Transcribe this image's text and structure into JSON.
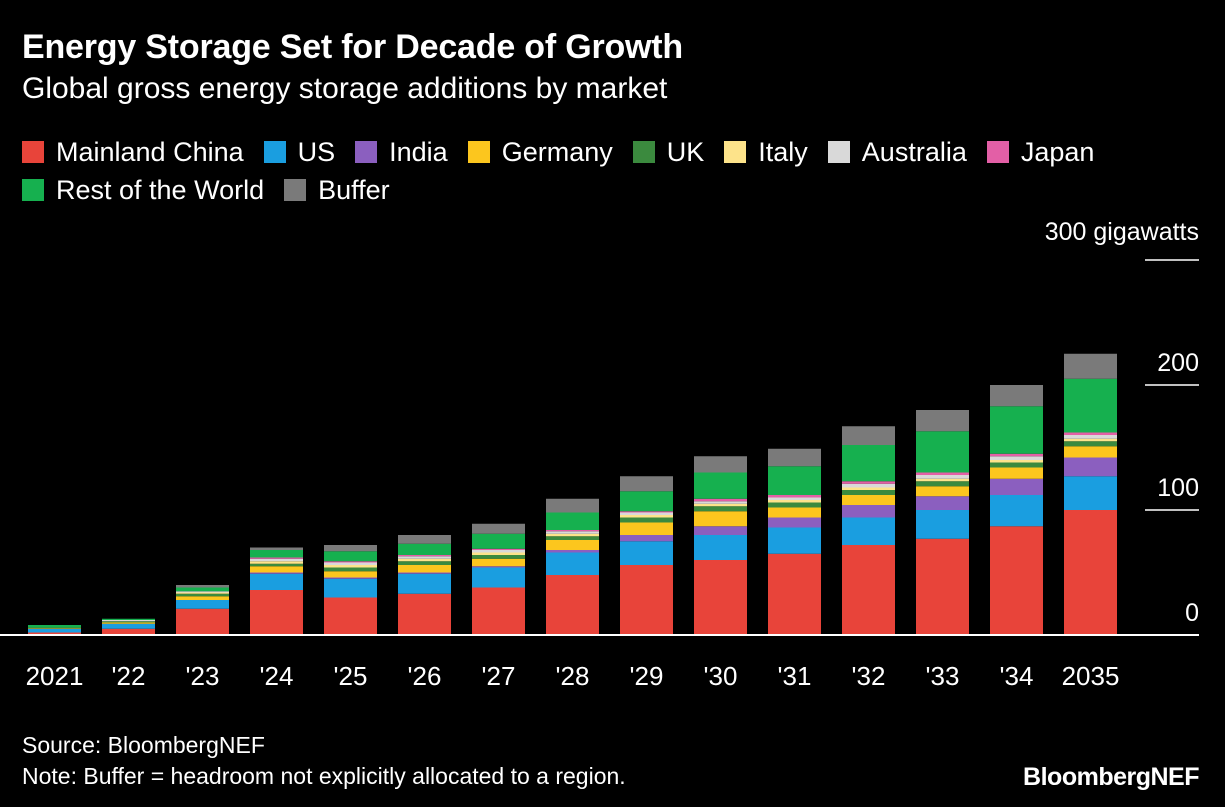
{
  "title": "Energy Storage Set for Decade of Growth",
  "subtitle": "Global gross energy storage additions by market",
  "source": "Source: BloombergNEF",
  "note": "Note: Buffer = headroom not explicitly allocated to a region.",
  "brand": "BloombergNEF",
  "unit_label": "300 gigawatts",
  "legend": [
    {
      "label": "Mainland China",
      "color": "#e8443a"
    },
    {
      "label": "US",
      "color": "#1a9ee0"
    },
    {
      "label": "India",
      "color": "#8b5fbf"
    },
    {
      "label": "Germany",
      "color": "#fcc61e"
    },
    {
      "label": "UK",
      "color": "#3b8a3e"
    },
    {
      "label": "Italy",
      "color": "#fde38a"
    },
    {
      "label": "Australia",
      "color": "#d9d9d9"
    },
    {
      "label": "Japan",
      "color": "#e35fa6"
    },
    {
      "label": "Rest of the World",
      "color": "#16b04f"
    },
    {
      "label": "Buffer",
      "color": "#7a7a7a"
    }
  ],
  "chart_data": {
    "type": "bar",
    "stacked": true,
    "title": "Energy Storage Set for Decade of Growth",
    "ylabel": "gigawatts",
    "ylim": [
      0,
      300
    ],
    "yticks": [
      0,
      100,
      200,
      300
    ],
    "ytick_labels": [
      "0",
      "100",
      "200",
      "300 gigawatts"
    ],
    "categories": [
      "2021",
      "'22",
      "'23",
      "'24",
      "'25",
      "'26",
      "'27",
      "'28",
      "'29",
      "'30",
      "'31",
      "'32",
      "'33",
      "'34",
      "2035"
    ],
    "series": [
      {
        "name": "Mainland China",
        "color": "#e8443a",
        "values": [
          2,
          5,
          21,
          36,
          30,
          33,
          38,
          48,
          56,
          60,
          65,
          72,
          77,
          87,
          100
        ]
      },
      {
        "name": "US",
        "color": "#1a9ee0",
        "values": [
          3,
          4,
          7,
          13,
          15,
          16,
          16,
          18,
          19,
          20,
          21,
          22,
          23,
          25,
          27
        ]
      },
      {
        "name": "India",
        "color": "#8b5fbf",
        "values": [
          0,
          0,
          0,
          1,
          1,
          1,
          1,
          2,
          5,
          7,
          8,
          10,
          11,
          13,
          15
        ]
      },
      {
        "name": "Germany",
        "color": "#fcc61e",
        "values": [
          0.5,
          1,
          3,
          5,
          5,
          6,
          6,
          8,
          10,
          12,
          8,
          8,
          8,
          9,
          9
        ]
      },
      {
        "name": "UK",
        "color": "#3b8a3e",
        "values": [
          0.5,
          1,
          2,
          2,
          3,
          3,
          3,
          3,
          4,
          4,
          4,
          4,
          4,
          4,
          4
        ]
      },
      {
        "name": "Italy",
        "color": "#fde38a",
        "values": [
          0,
          0,
          1,
          2,
          2,
          2,
          2,
          2,
          2,
          2,
          2,
          2,
          2,
          2,
          2
        ]
      },
      {
        "name": "Australia",
        "color": "#d9d9d9",
        "values": [
          0,
          1,
          1,
          2,
          2,
          2,
          2,
          2,
          2,
          2,
          2,
          3,
          3,
          3,
          3
        ]
      },
      {
        "name": "Japan",
        "color": "#e35fa6",
        "values": [
          0,
          0,
          0,
          1,
          1,
          1,
          1,
          1,
          1,
          2,
          2,
          2,
          2,
          2,
          2
        ]
      },
      {
        "name": "Rest of the World",
        "color": "#16b04f",
        "values": [
          2,
          1,
          3,
          6,
          8,
          9,
          12,
          14,
          16,
          21,
          23,
          29,
          33,
          38,
          43
        ]
      },
      {
        "name": "Buffer",
        "color": "#7a7a7a",
        "values": [
          0,
          0,
          2,
          2,
          5,
          7,
          8,
          11,
          12,
          13,
          14,
          15,
          17,
          17,
          20
        ]
      }
    ]
  }
}
